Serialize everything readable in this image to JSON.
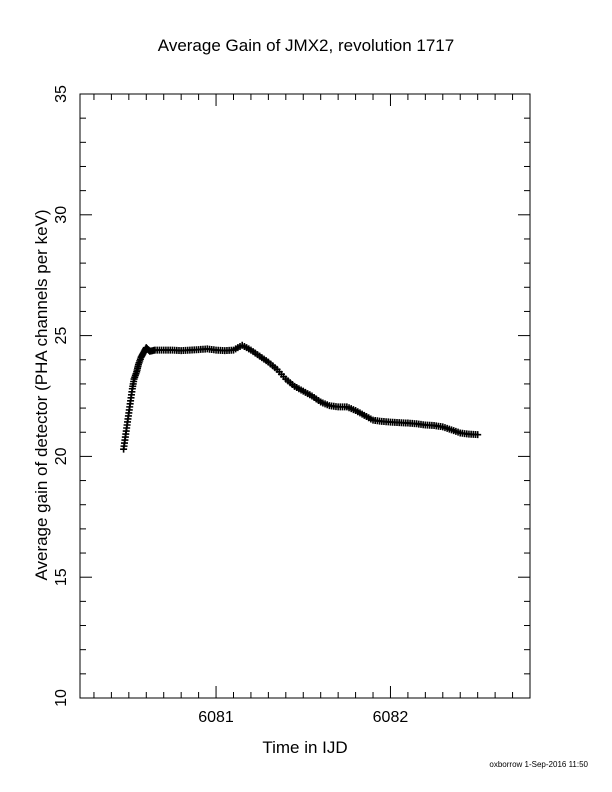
{
  "chart_data": {
    "type": "scatter",
    "title": "Average Gain of JMX2, revolution 1717",
    "xlabel": "Time in IJD",
    "ylabel": "Average gain of detector (PHA channels per keV)",
    "xlim": [
      6080.22,
      6082.8
    ],
    "ylim": [
      10,
      35
    ],
    "xticks": [
      6081,
      6082
    ],
    "yticks": [
      10,
      15,
      20,
      25,
      30,
      35
    ],
    "marker": "+",
    "grid": false,
    "series": [
      {
        "color": "#000000",
        "points": [
          [
            6080.47,
            20.3
          ],
          [
            6080.48,
            20.8
          ],
          [
            6080.49,
            21.3
          ],
          [
            6080.5,
            21.8
          ],
          [
            6080.51,
            22.3
          ],
          [
            6080.52,
            22.8
          ],
          [
            6080.53,
            23.2
          ],
          [
            6080.545,
            23.5
          ],
          [
            6080.555,
            23.8
          ],
          [
            6080.57,
            24.1
          ],
          [
            6080.585,
            24.3
          ],
          [
            6080.6,
            24.5
          ],
          [
            6080.62,
            24.35
          ],
          [
            6080.65,
            24.4
          ],
          [
            6080.7,
            24.4
          ],
          [
            6080.75,
            24.4
          ],
          [
            6080.8,
            24.38
          ],
          [
            6080.85,
            24.4
          ],
          [
            6080.9,
            24.42
          ],
          [
            6080.95,
            24.45
          ],
          [
            6081.0,
            24.4
          ],
          [
            6081.05,
            24.38
          ],
          [
            6081.1,
            24.4
          ],
          [
            6081.15,
            24.6
          ],
          [
            6081.2,
            24.4
          ],
          [
            6081.25,
            24.15
          ],
          [
            6081.3,
            23.9
          ],
          [
            6081.35,
            23.6
          ],
          [
            6081.4,
            23.2
          ],
          [
            6081.45,
            22.9
          ],
          [
            6081.5,
            22.7
          ],
          [
            6081.55,
            22.5
          ],
          [
            6081.6,
            22.25
          ],
          [
            6081.65,
            22.1
          ],
          [
            6081.7,
            22.05
          ],
          [
            6081.75,
            22.05
          ],
          [
            6081.8,
            21.9
          ],
          [
            6081.85,
            21.7
          ],
          [
            6081.9,
            21.5
          ],
          [
            6081.95,
            21.45
          ],
          [
            6082.0,
            21.42
          ],
          [
            6082.05,
            21.4
          ],
          [
            6082.1,
            21.38
          ],
          [
            6082.15,
            21.35
          ],
          [
            6082.2,
            21.3
          ],
          [
            6082.25,
            21.28
          ],
          [
            6082.3,
            21.22
          ],
          [
            6082.35,
            21.1
          ],
          [
            6082.4,
            20.97
          ],
          [
            6082.45,
            20.92
          ],
          [
            6082.5,
            20.9
          ]
        ]
      }
    ]
  },
  "footer": {
    "credit": "oxborrow  1-Sep-2016 11:50"
  }
}
